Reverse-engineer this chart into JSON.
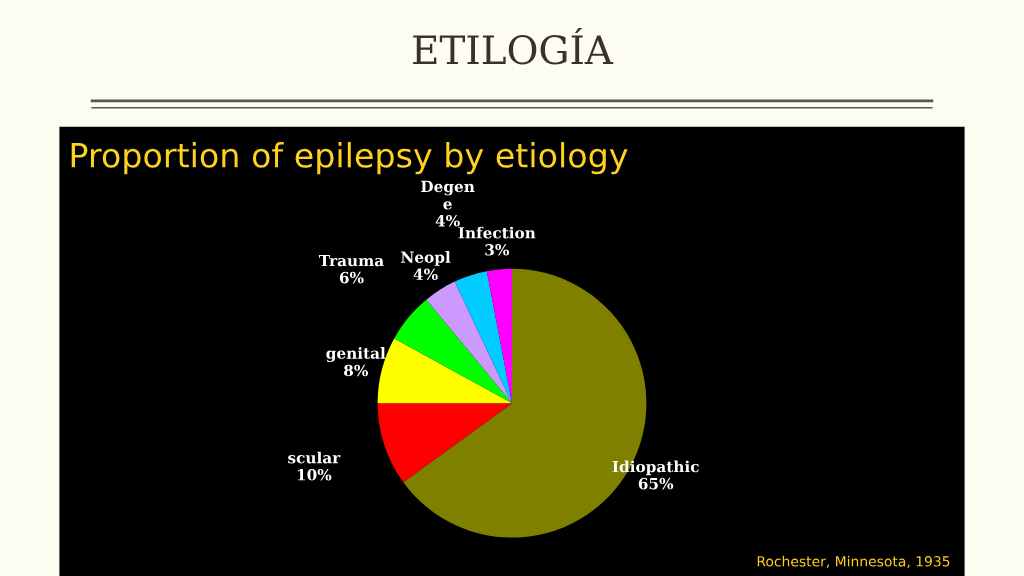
{
  "chart_data": {
    "type": "pie",
    "title": "ETILOGÍA",
    "subtitle": "Proportion of epilepsy by etiology",
    "categories": [
      "Idiopathic",
      "scular",
      "genital",
      "Trauma",
      "Neopl",
      "Degen\ne",
      "Infection"
    ],
    "values": [
      65,
      10,
      8,
      6,
      4,
      4,
      3
    ],
    "colors": [
      "#808000",
      "#ff0000",
      "#ffff00",
      "#00ff00",
      "#cc99ff",
      "#00ccff",
      "#ff00ff"
    ],
    "value_labels": [
      "65%",
      "10%",
      "8%",
      "6%",
      "4%",
      "4%",
      "3%"
    ],
    "annotations": [
      "Rochester, Minnesota, 1935"
    ]
  }
}
